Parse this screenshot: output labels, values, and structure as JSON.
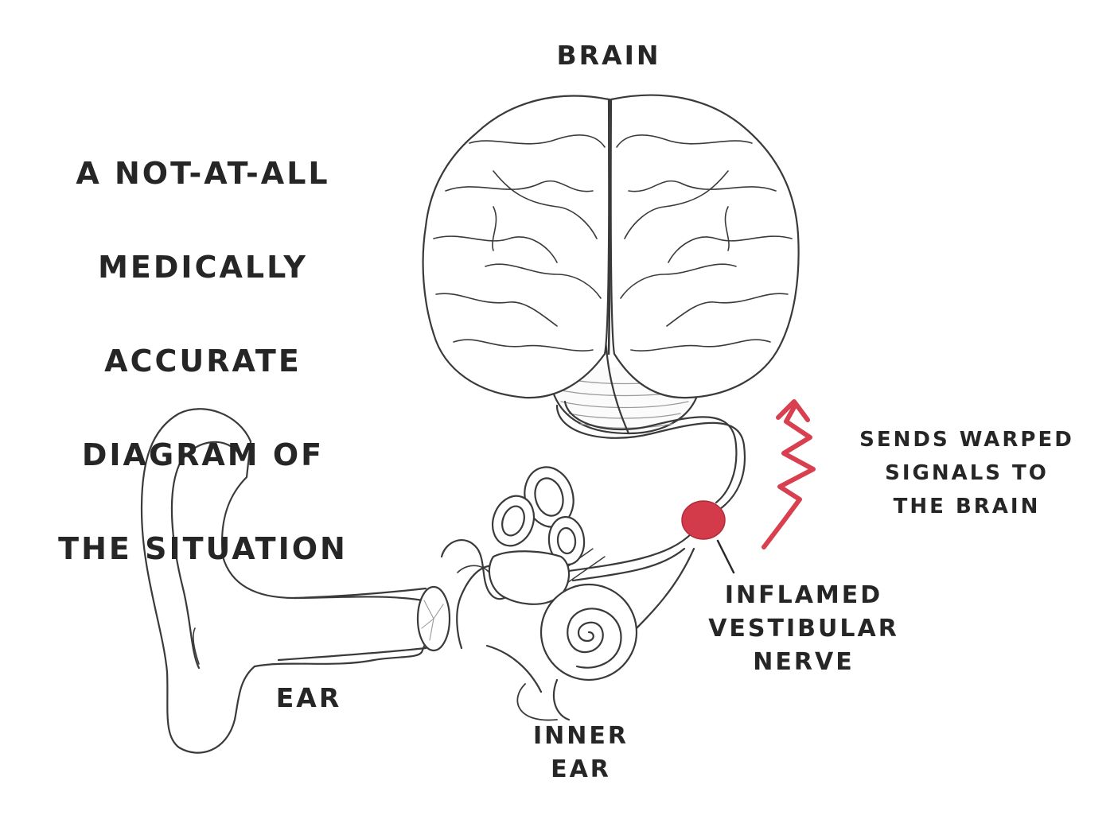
{
  "diagram": {
    "title_lines": [
      "A NOT-AT-ALL",
      "MEDICALLY",
      "ACCURATE",
      "DIAGRAM OF",
      "THE SITUATION"
    ],
    "labels": {
      "brain": "BRAIN",
      "ear": "EAR",
      "inner_ear": "INNER\nEAR",
      "inflamed_nerve": "INFLAMED\nVESTIBULAR\nNERVE",
      "signal": "SENDS WARPED\nSIGNALS TO\nTHE BRAIN"
    },
    "colors": {
      "line": "#3a3a3a",
      "accent_red": "#d9404f",
      "inflamed_fill": "#d33b4b",
      "text": "#262626"
    },
    "icons": {
      "brain": "brain-illustration",
      "ear": "outer-ear-illustration",
      "inner_ear": "cochlea-and-semicircular-canals-illustration",
      "signal": "zigzag-arrow-icon"
    }
  }
}
